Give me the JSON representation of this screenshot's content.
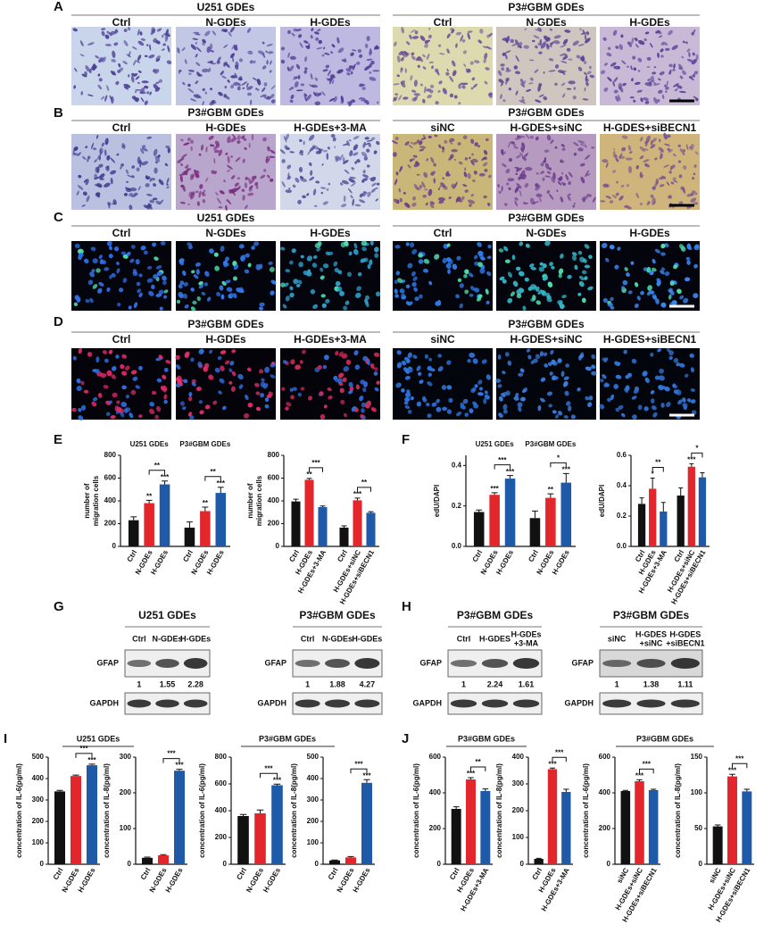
{
  "image_rows": [
    {
      "letter": "A",
      "groups": [
        {
          "title": "U251 GDEs",
          "columns": [
            "Ctrl",
            "N-GDEs",
            "H-GDEs"
          ]
        },
        {
          "title": "P3#GBM GDEs",
          "columns": [
            "Ctrl",
            "N-GDEs",
            "H-GDEs"
          ]
        }
      ]
    },
    {
      "letter": "B",
      "groups": [
        {
          "title": "P3#GBM GDEs",
          "columns": [
            "Ctrl",
            "H-GDEs",
            "H-GDEs+3-MA"
          ]
        },
        {
          "title": "P3#GBM GDEs",
          "columns": [
            "siNC",
            "H-GDES+siNC",
            "H-GDES+siBECN1"
          ]
        }
      ]
    },
    {
      "letter": "C",
      "groups": [
        {
          "title": "U251 GDEs",
          "columns": [
            "Ctrl",
            "N-GDEs",
            "H-GDEs"
          ]
        },
        {
          "title": "P3#GBM GDEs",
          "columns": [
            "Ctrl",
            "N-GDEs",
            "H-GDEs"
          ]
        }
      ]
    },
    {
      "letter": "D",
      "groups": [
        {
          "title": "P3#GBM GDEs",
          "columns": [
            "Ctrl",
            "H-GDEs",
            "H-GDEs+3-MA"
          ]
        },
        {
          "title": "P3#GBM GDEs",
          "columns": [
            "siNC",
            "H-GDES+siNC",
            "H-GDES+siBECN1"
          ]
        }
      ]
    }
  ],
  "letters": [
    "E",
    "F",
    "G",
    "H",
    "I",
    "J"
  ],
  "blots": [
    {
      "title": "U251 GDEs",
      "lanes": [
        [
          "Ctrl"
        ],
        [
          "N-GDEs"
        ],
        [
          "H-GDEs"
        ]
      ],
      "rows": [
        "GFAP",
        "GAPDH"
      ],
      "ratios": [
        1,
        1.55,
        2.28
      ]
    },
    {
      "title": "P3#GBM GDEs",
      "lanes": [
        [
          "Ctrl"
        ],
        [
          "N-GDEs"
        ],
        [
          "H-GDEs"
        ]
      ],
      "rows": [
        "GFAP",
        "GAPDH"
      ],
      "ratios": [
        1,
        1.88,
        4.27
      ]
    },
    {
      "title": "P3#GBM GDEs",
      "lanes": [
        [
          "Ctrl"
        ],
        [
          "H-GDES"
        ],
        [
          "H-GDEs",
          "+3-MA"
        ]
      ],
      "rows": [
        "GFAP",
        "GAPDH"
      ],
      "ratios": [
        1,
        2.24,
        1.61
      ]
    },
    {
      "title": "P3#GBM GDEs",
      "lanes": [
        [
          "siNC"
        ],
        [
          "H-GDES",
          "+siNC"
        ],
        [
          "H-GDES",
          "+siBECN1"
        ]
      ],
      "rows": [
        "GFAP",
        "GAPDH"
      ],
      "ratios": [
        1,
        1.38,
        1.11
      ]
    }
  ],
  "section_titles": [
    "U251 GDEs",
    "P3#GBM GDEs",
    "P3#GBM GDEs",
    "P3#GBM GDEs"
  ],
  "chart_data": [
    {
      "type": "bar",
      "group_labels": [
        "U251 GDEs",
        "P3#GBM GDEs"
      ],
      "ylabel": [
        "number of",
        "migration cells"
      ],
      "ylim": [
        0,
        800
      ],
      "yticks": [
        0,
        200,
        400,
        600,
        800
      ],
      "categories": [
        "Ctrl",
        "N-GDEs",
        "H-GDEs",
        "Ctrl",
        "N-GDEs",
        "H-GDEs"
      ],
      "values": [
        230,
        380,
        545,
        165,
        310,
        470
      ],
      "errors": [
        30,
        25,
        30,
        50,
        35,
        50
      ],
      "colors": [
        "#111111",
        "#e3262b",
        "#1f5aa8",
        "#111111",
        "#e3262b",
        "#1f5aa8"
      ],
      "bar_labels": [
        null,
        "**",
        "***",
        null,
        "**",
        "***"
      ],
      "brackets": [
        {
          "label": "**",
          "bars": [
            1,
            2
          ]
        },
        {
          "label": "**",
          "bars": [
            4,
            5
          ]
        }
      ]
    },
    {
      "type": "bar",
      "ylabel": [
        "number of",
        "migration cells"
      ],
      "ylim": [
        0,
        800
      ],
      "yticks": [
        0,
        200,
        400,
        600,
        800
      ],
      "categories": [
        "Ctrl",
        "H-GDEs",
        "H-GDEs+3-MA",
        "Ctrl",
        "H-GDEs+siNC",
        "H-GDEs+siBECN1"
      ],
      "values": [
        395,
        585,
        345,
        165,
        405,
        295
      ],
      "errors": [
        20,
        12,
        10,
        15,
        20,
        10
      ],
      "colors": [
        "#111111",
        "#e3262b",
        "#1f5aa8",
        "#111111",
        "#e3262b",
        "#1f5aa8"
      ],
      "bar_labels": [
        null,
        "**",
        null,
        null,
        "***",
        null
      ],
      "brackets": [
        {
          "label": "***",
          "bars": [
            1,
            2
          ]
        },
        {
          "label": "**",
          "bars": [
            4,
            5
          ]
        }
      ]
    },
    {
      "type": "bar",
      "group_labels": [
        "U251 GDEs",
        "P3#GBM GDEs"
      ],
      "ylabel": [
        "edU/DAPI"
      ],
      "ylim": [
        0,
        0.45
      ],
      "yticks": [
        {
          "value": 0,
          "label": "0.0"
        },
        0.2,
        0.4
      ],
      "categories": [
        "Ctrl",
        "N-GDEs",
        "H-GDEs",
        "Ctrl",
        "N-GDEs",
        "H-GDEs"
      ],
      "values": [
        0.17,
        0.255,
        0.335,
        0.14,
        0.24,
        0.315
      ],
      "errors": [
        0.01,
        0.01,
        0.015,
        0.035,
        0.02,
        0.045
      ],
      "colors": [
        "#111111",
        "#e3262b",
        "#1f5aa8",
        "#111111",
        "#e3262b",
        "#1f5aa8"
      ],
      "bar_labels": [
        null,
        "***",
        "***",
        null,
        "**",
        "***"
      ],
      "brackets": [
        {
          "label": "***",
          "bars": [
            1,
            2
          ]
        },
        {
          "label": "*",
          "bars": [
            4,
            5
          ]
        }
      ]
    },
    {
      "type": "bar",
      "ylabel": [
        "edU/DAPI"
      ],
      "ylim": [
        0,
        0.6
      ],
      "yticks": [
        {
          "value": 0,
          "label": "0.0"
        },
        0.2,
        0.4,
        0.6
      ],
      "categories": [
        "Ctrl",
        "H-GDEs",
        "H-GDEs+3-MA",
        "Ctrl",
        "H-GDEs+siNC",
        "H-GDEs+siBECN1"
      ],
      "values": [
        0.28,
        0.38,
        0.23,
        0.335,
        0.525,
        0.455
      ],
      "errors": [
        0.04,
        0.07,
        0.06,
        0.05,
        0.02,
        0.03
      ],
      "colors": [
        "#111111",
        "#e3262b",
        "#1f5aa8",
        "#111111",
        "#e3262b",
        "#1f5aa8"
      ],
      "bar_labels": [
        null,
        "*",
        null,
        null,
        "***",
        null
      ],
      "brackets": [
        {
          "label": "**",
          "bars": [
            1,
            2
          ]
        },
        {
          "label": "*",
          "bars": [
            4,
            5
          ]
        }
      ]
    },
    {
      "type": "bar",
      "ylabel": [
        "concentration of IL-6(pg/ml)"
      ],
      "ylim": [
        0,
        500
      ],
      "yticks": [
        0,
        100,
        200,
        300,
        400,
        500
      ],
      "categories": [
        "Ctrl",
        "N-GDEs",
        "H-GDEs"
      ],
      "values": [
        340,
        412,
        462
      ],
      "errors": [
        5,
        4,
        5
      ],
      "colors": [
        "#111111",
        "#e3262b",
        "#1f5aa8"
      ],
      "bar_labels": [
        null,
        null,
        "***"
      ],
      "brackets": [
        {
          "label": "***",
          "bars": [
            1,
            2
          ]
        }
      ]
    },
    {
      "type": "bar",
      "ylabel": [
        "concentration of IL-8(pg/ml)"
      ],
      "ylim": [
        0,
        300
      ],
      "yticks": [
        0,
        100,
        200,
        300
      ],
      "categories": [
        "Ctrl",
        "N-GDEs",
        "H-GDEs"
      ],
      "values": [
        18,
        25,
        262
      ],
      "errors": [
        2,
        2,
        4
      ],
      "colors": [
        "#111111",
        "#e3262b",
        "#1f5aa8"
      ],
      "bar_labels": [
        null,
        null,
        "***"
      ],
      "brackets": [
        {
          "label": "***",
          "bars": [
            1,
            2
          ]
        }
      ]
    },
    {
      "type": "bar",
      "ylabel": [
        "concentration of IL-6(pg/ml)"
      ],
      "ylim": [
        0,
        800
      ],
      "yticks": [
        0,
        200,
        400,
        600,
        800
      ],
      "categories": [
        "Ctrl",
        "N-GDEs",
        "H-GDEs"
      ],
      "values": [
        360,
        380,
        590
      ],
      "errors": [
        12,
        25,
        8
      ],
      "colors": [
        "#111111",
        "#e3262b",
        "#1f5aa8"
      ],
      "bar_labels": [
        null,
        null,
        "***"
      ],
      "brackets": [
        {
          "label": "***",
          "bars": [
            1,
            2
          ]
        }
      ]
    },
    {
      "type": "bar",
      "ylabel": [
        "concentration of IL-8(pg/ml)"
      ],
      "ylim": [
        0,
        500
      ],
      "yticks": [
        0,
        100,
        200,
        300,
        400,
        500
      ],
      "categories": [
        "Ctrl",
        "N-GDEs",
        "H-GDEs"
      ],
      "values": [
        18,
        32,
        380
      ],
      "errors": [
        2,
        4,
        15
      ],
      "colors": [
        "#111111",
        "#e3262b",
        "#1f5aa8"
      ],
      "bar_labels": [
        null,
        null,
        "***"
      ],
      "brackets": [
        {
          "label": "***",
          "bars": [
            1,
            2
          ]
        }
      ]
    },
    {
      "type": "bar",
      "ylabel": [
        "concentration of IL-6(pg/ml)"
      ],
      "ylim": [
        0,
        600
      ],
      "yticks": [
        0,
        200,
        400,
        600
      ],
      "categories": [
        "Ctrl",
        "H-GDEs",
        "H-GDEs+3-MA"
      ],
      "values": [
        310,
        475,
        410
      ],
      "errors": [
        12,
        10,
        12
      ],
      "colors": [
        "#111111",
        "#e3262b",
        "#1f5aa8"
      ],
      "bar_labels": [
        null,
        "***",
        null
      ],
      "brackets": [
        {
          "label": "**",
          "bars": [
            1,
            2
          ]
        }
      ]
    },
    {
      "type": "bar",
      "ylabel": [
        "concentration of IL-8(pg/ml)"
      ],
      "ylim": [
        0,
        400
      ],
      "yticks": [
        0,
        100,
        200,
        300,
        400
      ],
      "categories": [
        "Ctrl",
        "H-GDEs",
        "H-GDEs+3-MA"
      ],
      "values": [
        20,
        355,
        270
      ],
      "errors": [
        2,
        4,
        10
      ],
      "colors": [
        "#111111",
        "#e3262b",
        "#1f5aa8"
      ],
      "bar_labels": [
        null,
        "***",
        null
      ],
      "brackets": [
        {
          "label": "***",
          "bars": [
            1,
            2
          ]
        }
      ]
    },
    {
      "type": "bar",
      "ylabel": [
        "concentration of IL-6(pg/ml)"
      ],
      "ylim": [
        0,
        600
      ],
      "yticks": [
        0,
        200,
        400,
        600
      ],
      "categories": [
        "siNC",
        "H-GDEs+siNC",
        "H-GDEs+siBECN1"
      ],
      "values": [
        410,
        465,
        415
      ],
      "errors": [
        4,
        8,
        5
      ],
      "colors": [
        "#111111",
        "#e3262b",
        "#1f5aa8"
      ],
      "bar_labels": [
        null,
        "***",
        null
      ],
      "brackets": [
        {
          "label": "***",
          "bars": [
            1,
            2
          ]
        }
      ]
    },
    {
      "type": "bar",
      "ylabel": [
        "concentration of IL-8(pg/ml)"
      ],
      "ylim": [
        0,
        150
      ],
      "yticks": [
        0,
        50,
        100,
        150
      ],
      "categories": [
        "siNC",
        "H-GDEs+siNC",
        "H-GDEs+siBECN1"
      ],
      "values": [
        53,
        123,
        102
      ],
      "errors": [
        2,
        3,
        3
      ],
      "colors": [
        "#111111",
        "#e3262b",
        "#1f5aa8"
      ],
      "bar_labels": [
        null,
        "***",
        null
      ],
      "brackets": [
        {
          "label": "***",
          "bars": [
            1,
            2
          ]
        }
      ]
    }
  ]
}
